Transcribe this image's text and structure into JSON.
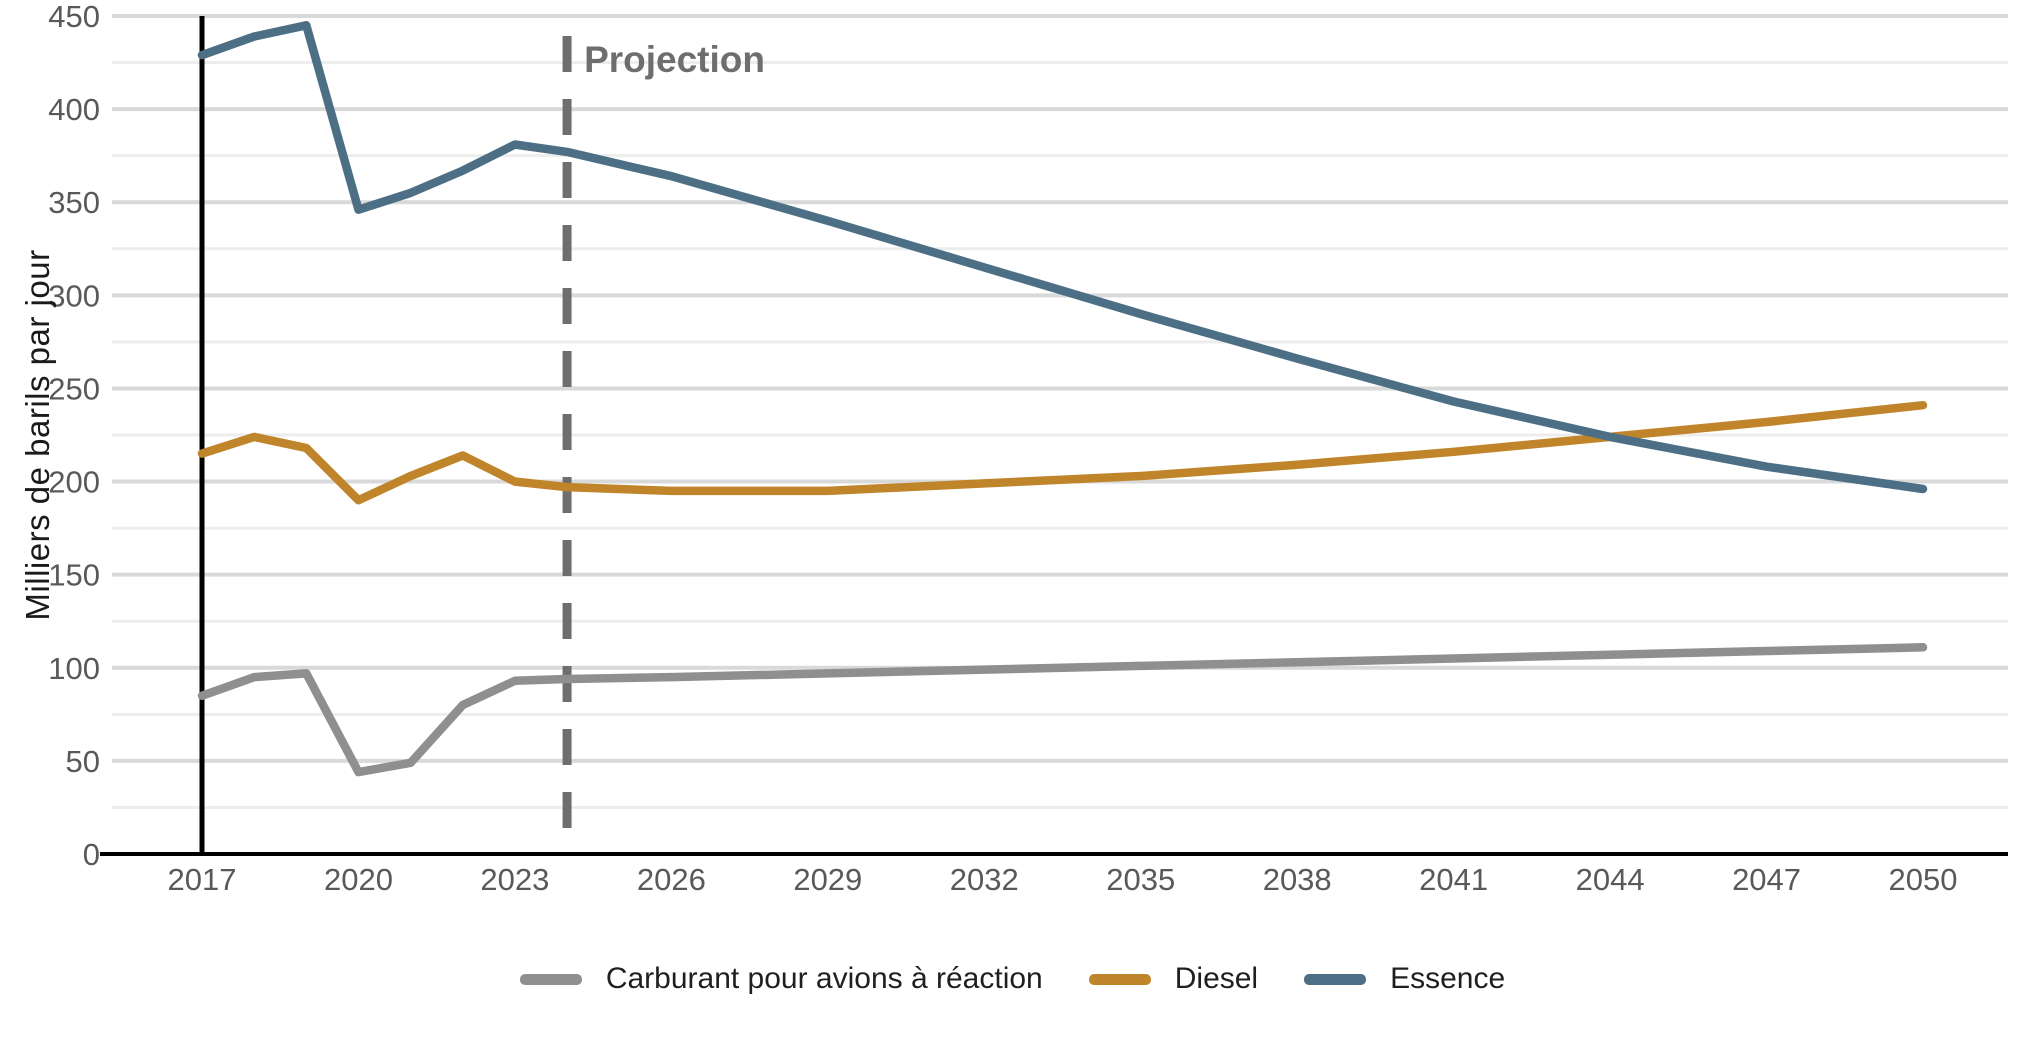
{
  "chart_data": {
    "type": "line",
    "title": "",
    "xlabel": "",
    "ylabel": "Milliers de barils par jour",
    "ylim": [
      0,
      450
    ],
    "xlim": [
      2015.3,
      2051.6
    ],
    "grid": true,
    "y_major_ticks": [
      0,
      50,
      100,
      150,
      200,
      250,
      300,
      350,
      400,
      450
    ],
    "y_minor_step": 25,
    "x_ticks": [
      2017,
      2020,
      2023,
      2026,
      2029,
      2032,
      2035,
      2038,
      2041,
      2044,
      2047,
      2050
    ],
    "history_marker_year": 2017,
    "projection": {
      "label": "Projection",
      "year": 2024
    },
    "legend_position": "bottom",
    "series": [
      {
        "name": "Carburant pour avions à réaction",
        "color": "#8F8F8F",
        "points": [
          [
            2017,
            85
          ],
          [
            2018,
            95
          ],
          [
            2019,
            97
          ],
          [
            2020,
            44
          ],
          [
            2021,
            49
          ],
          [
            2022,
            80
          ],
          [
            2023,
            93
          ],
          [
            2024,
            94
          ],
          [
            2026,
            95
          ],
          [
            2029,
            97
          ],
          [
            2032,
            99
          ],
          [
            2035,
            101
          ],
          [
            2038,
            103
          ],
          [
            2041,
            105
          ],
          [
            2044,
            107
          ],
          [
            2047,
            109
          ],
          [
            2050,
            111
          ]
        ]
      },
      {
        "name": "Diesel",
        "color": "#C0842B",
        "points": [
          [
            2017,
            215
          ],
          [
            2018,
            224
          ],
          [
            2019,
            218
          ],
          [
            2020,
            190
          ],
          [
            2021,
            203
          ],
          [
            2022,
            214
          ],
          [
            2023,
            200
          ],
          [
            2024,
            197
          ],
          [
            2026,
            195
          ],
          [
            2029,
            195
          ],
          [
            2032,
            199
          ],
          [
            2035,
            203
          ],
          [
            2038,
            209
          ],
          [
            2041,
            216
          ],
          [
            2044,
            224
          ],
          [
            2047,
            232
          ],
          [
            2050,
            241
          ]
        ]
      },
      {
        "name": "Essence",
        "color": "#4D6F85",
        "points": [
          [
            2017,
            429
          ],
          [
            2018,
            439
          ],
          [
            2019,
            445
          ],
          [
            2020,
            346
          ],
          [
            2021,
            355
          ],
          [
            2022,
            367
          ],
          [
            2023,
            381
          ],
          [
            2024,
            377
          ],
          [
            2026,
            364
          ],
          [
            2029,
            340
          ],
          [
            2032,
            315
          ],
          [
            2035,
            290
          ],
          [
            2038,
            266
          ],
          [
            2041,
            243
          ],
          [
            2044,
            224
          ],
          [
            2047,
            208
          ],
          [
            2050,
            196
          ]
        ]
      }
    ]
  },
  "style": {
    "grid_major_color": "#D9D9D9",
    "grid_minor_color": "#EDEDED",
    "axis_color": "#000000",
    "tick_label_color": "#595959",
    "projection_color": "#6E6E6E"
  }
}
